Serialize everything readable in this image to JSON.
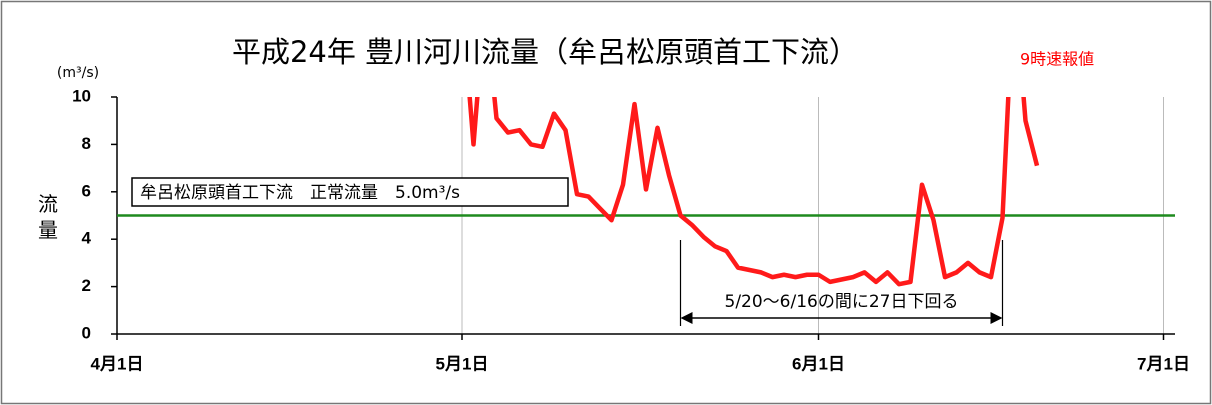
{
  "chart_data": {
    "type": "line",
    "title": "平成24年 豊川河川流量（牟呂松原頭首工下流）",
    "note": "9時速報値",
    "y_unit": "(m³/s)",
    "y_label": "流量",
    "threshold": 5.0,
    "threshold_color": "#1e8a1e",
    "threshold_label": "牟呂松原頭首工下流　正常流量　5.0m³/s",
    "span_annotation": {
      "label": "5/20～6/16の間に27日下回る",
      "from": 49,
      "to": 77
    },
    "xlim": [
      0,
      92
    ],
    "xticks": [
      {
        "value": 0,
        "label": "4月1日"
      },
      {
        "value": 30,
        "label": "5月1日"
      },
      {
        "value": 61,
        "label": "6月1日"
      },
      {
        "value": 91,
        "label": "7月1日"
      }
    ],
    "ylim": [
      0,
      10
    ],
    "yticks": [
      0,
      2,
      4,
      6,
      8,
      10
    ],
    "xgrid": true,
    "series": [
      {
        "color": "#ff1a1a",
        "x": [
          30,
          31,
          32,
          33,
          34,
          35,
          36,
          37,
          38,
          39,
          40,
          41,
          42,
          43,
          44,
          45,
          46,
          47,
          48,
          49,
          50,
          51,
          52,
          53,
          54,
          55,
          56,
          57,
          58,
          59,
          60,
          61,
          62,
          63,
          64,
          65,
          66,
          67,
          68,
          69,
          70,
          71,
          72,
          73,
          74,
          75,
          76,
          77,
          78,
          79,
          80
        ],
        "values": [
          14,
          8.0,
          14,
          9.1,
          8.5,
          8.6,
          8.0,
          7.9,
          9.3,
          8.6,
          5.9,
          5.8,
          5.3,
          4.8,
          6.3,
          9.7,
          6.1,
          8.7,
          6.7,
          5.0,
          4.6,
          4.1,
          3.7,
          3.5,
          2.8,
          2.7,
          2.6,
          2.4,
          2.5,
          2.4,
          2.5,
          2.5,
          2.2,
          2.3,
          2.4,
          2.6,
          2.2,
          2.6,
          2.1,
          2.2,
          6.3,
          4.8,
          2.4,
          2.6,
          3.0,
          2.6,
          2.4,
          4.9,
          15,
          9.0,
          7.1
        ]
      }
    ]
  }
}
